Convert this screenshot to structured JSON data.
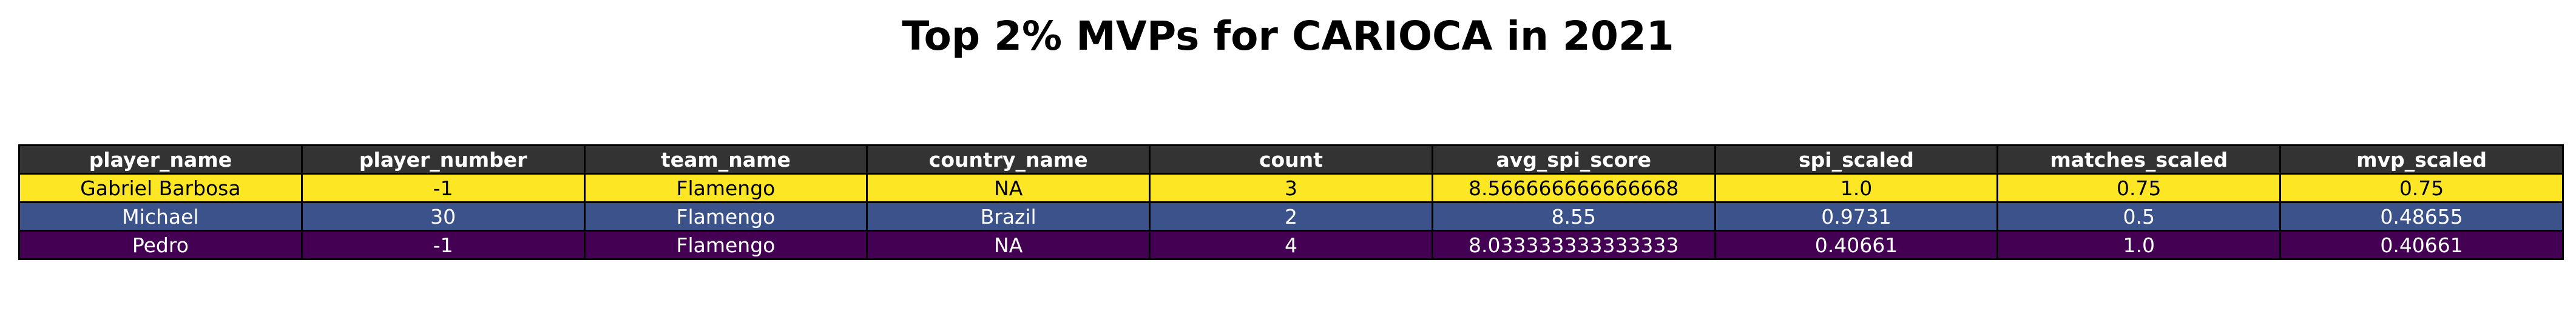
{
  "title": "Top 2% MVPs for CARIOCA in 2021",
  "chart_data": {
    "type": "table",
    "title": "Top 2% MVPs for CARIOCA in 2021",
    "columns": [
      "player_name",
      "player_number",
      "team_name",
      "country_name",
      "count",
      "avg_spi_score",
      "spi_scaled",
      "matches_scaled",
      "mvp_scaled"
    ],
    "rows": [
      [
        "Gabriel Barbosa",
        "-1",
        "Flamengo",
        "NA",
        "3",
        "8.566666666666668",
        "1.0",
        "0.75",
        "0.75"
      ],
      [
        "Michael",
        "30",
        "Flamengo",
        "Brazil",
        "2",
        "8.55",
        "0.9731",
        "0.5",
        "0.48655"
      ],
      [
        "Pedro",
        "-1",
        "Flamengo",
        "NA",
        "4",
        "8.033333333333333",
        "0.40661",
        "1.0",
        "0.40661"
      ]
    ],
    "colors": {
      "header_bg": "#333333",
      "header_text": "#ffffff",
      "row_bg": [
        "#fde725",
        "#3b528b",
        "#440154"
      ],
      "row_text": [
        "#000000",
        "#ffffff",
        "#ffffff"
      ]
    }
  }
}
